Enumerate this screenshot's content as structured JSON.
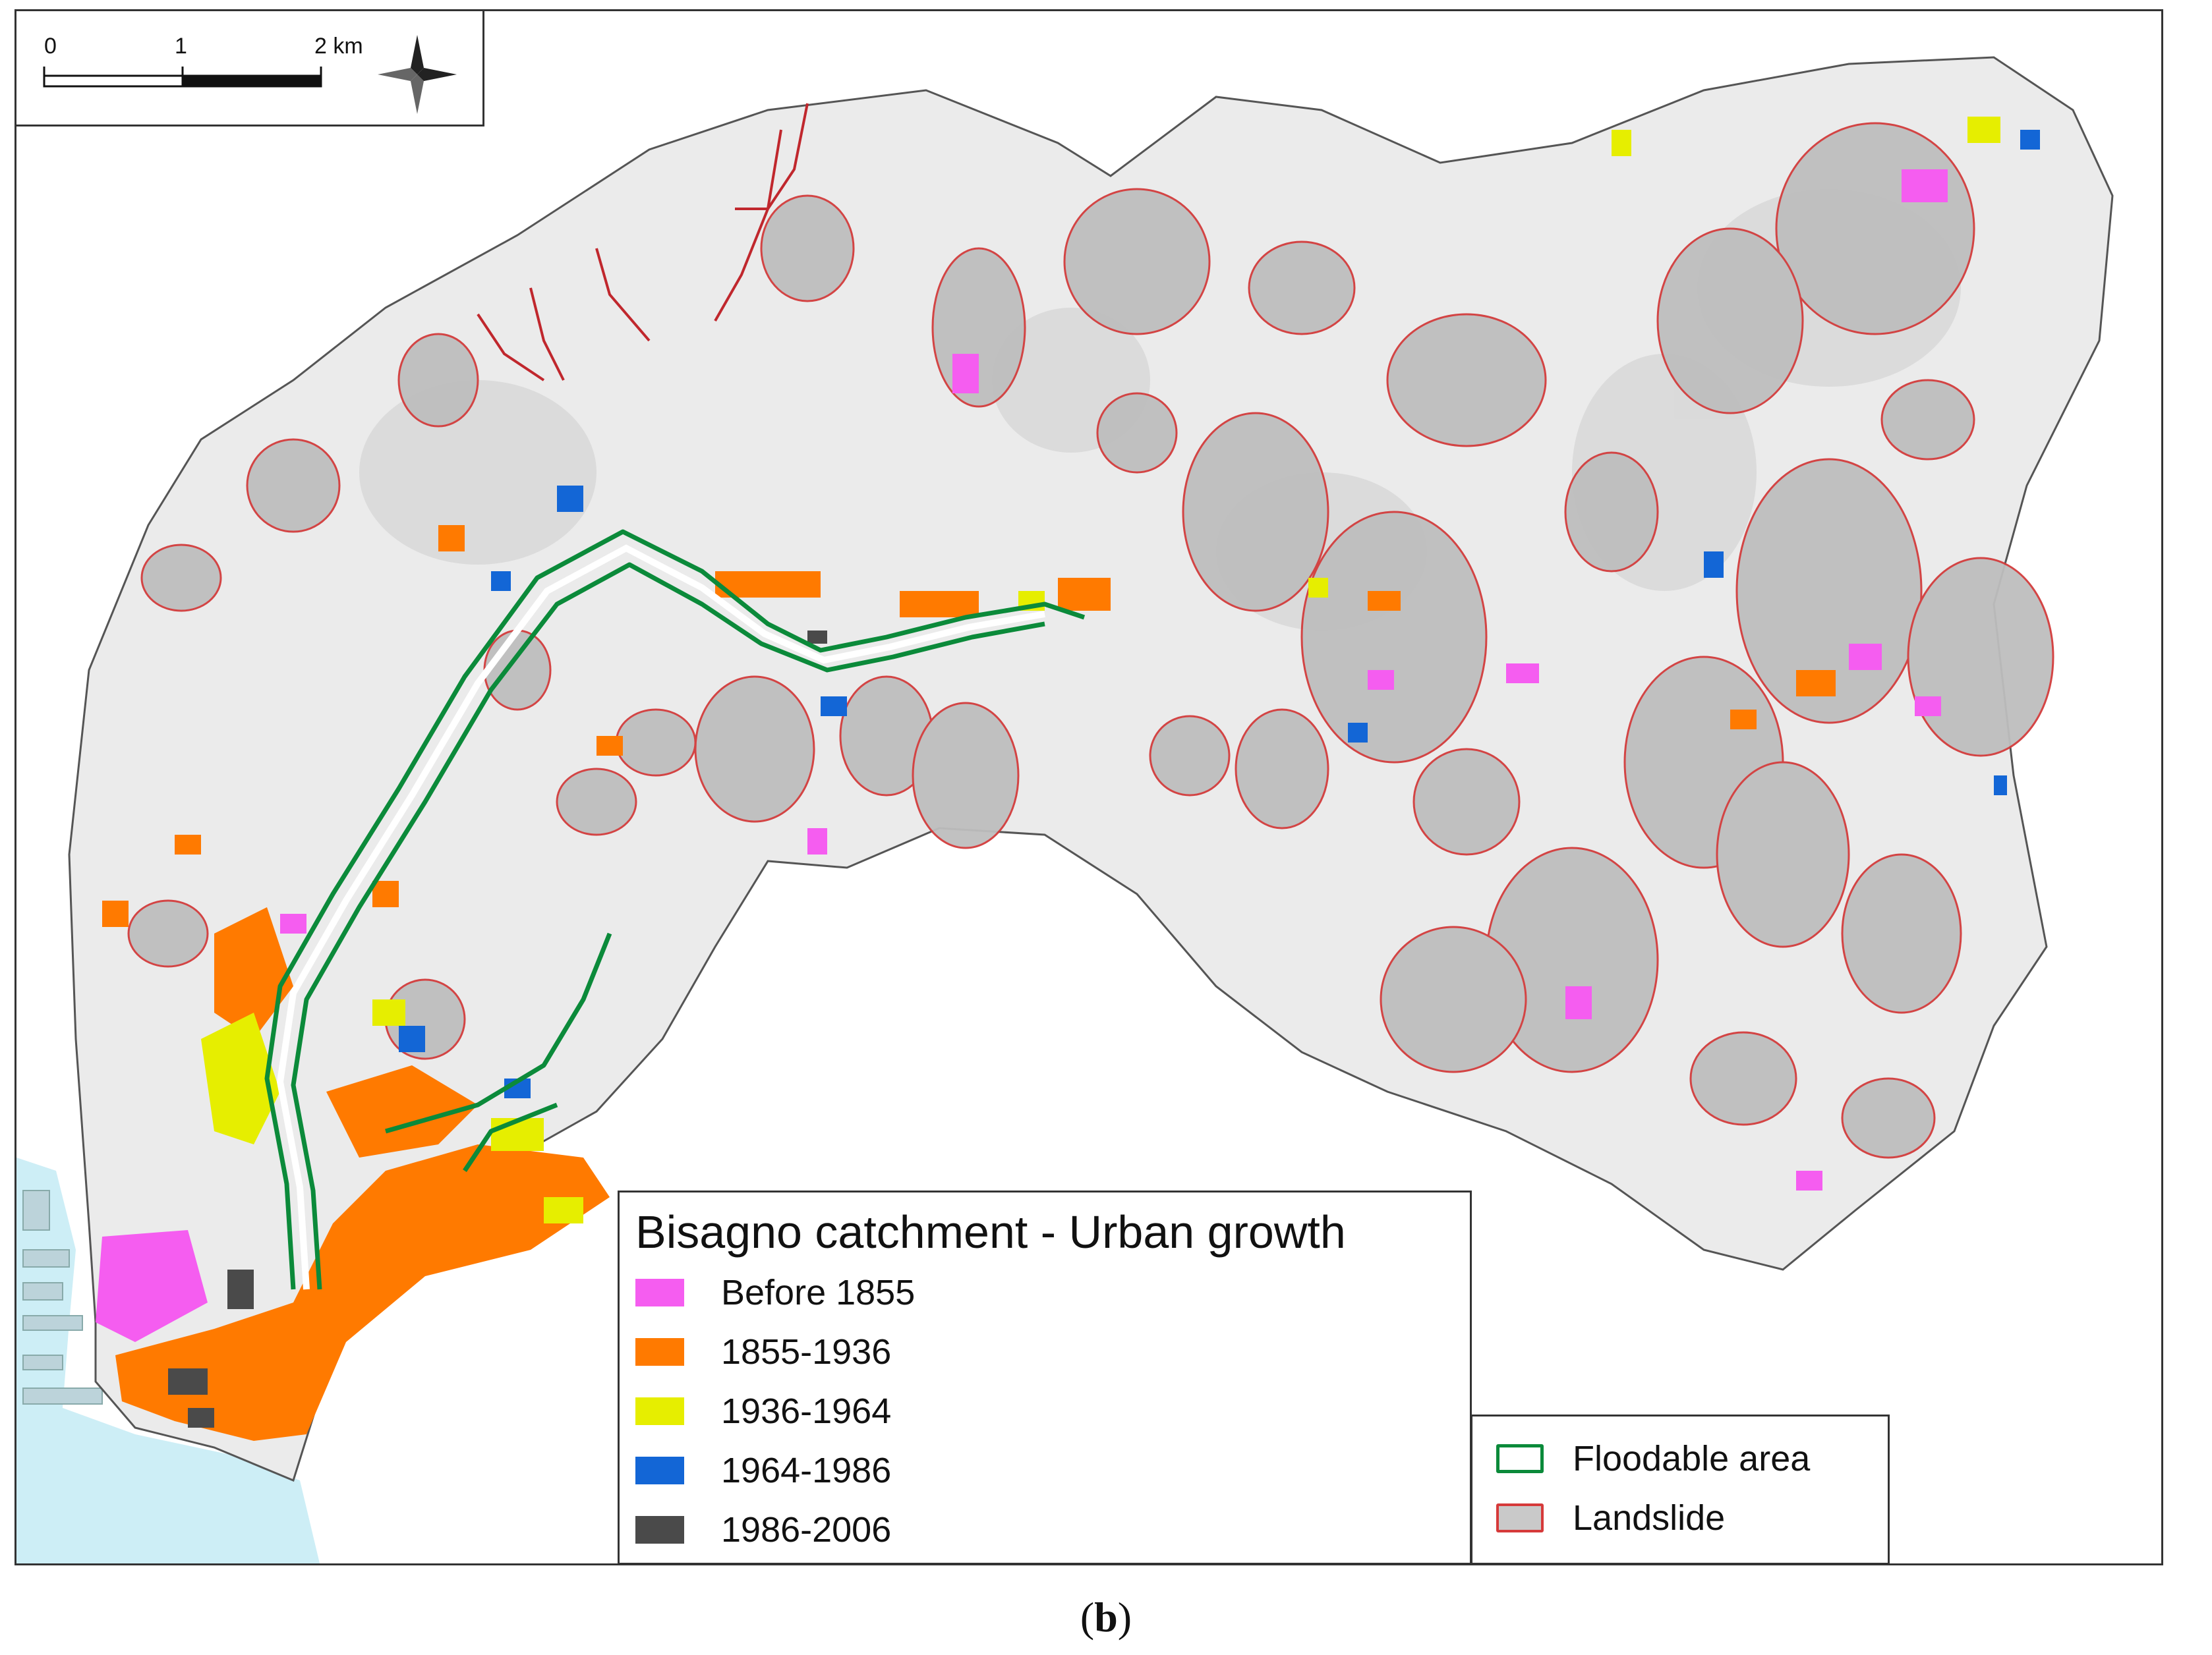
{
  "scale_bar": {
    "tick_labels": [
      "0",
      "1",
      "2 km"
    ]
  },
  "compass": {
    "icon": "north-arrow-compass-icon"
  },
  "legend": {
    "title": "Bisagno catchment - Urban growth",
    "periods": [
      {
        "label": "Before 1855",
        "color": "#f55df0"
      },
      {
        "label": "1855-1936",
        "color": "#ff7a00"
      },
      {
        "label": "1936-1964",
        "color": "#e6ee00"
      },
      {
        "label": "1964-1986",
        "color": "#1366d6"
      },
      {
        "label": "1986-2006",
        "color": "#4a4a4a"
      }
    ]
  },
  "side_legend": {
    "items": [
      {
        "label": "Floodable area",
        "fill": "#ffffff",
        "stroke": "#0b8a3a"
      },
      {
        "label": "Landslide",
        "fill": "#c9c9c9",
        "stroke": "#d63a3a"
      }
    ]
  },
  "colors": {
    "sea": "#cdeef6",
    "catchment": "#e9e9e9",
    "landslide_fill": "#bdbdbd",
    "landslide_stroke": "#d23c3c",
    "river": "#c0272d",
    "flood": "#0b8a3a"
  },
  "caption": {
    "open": "(",
    "letter": "b",
    "close": ")"
  }
}
